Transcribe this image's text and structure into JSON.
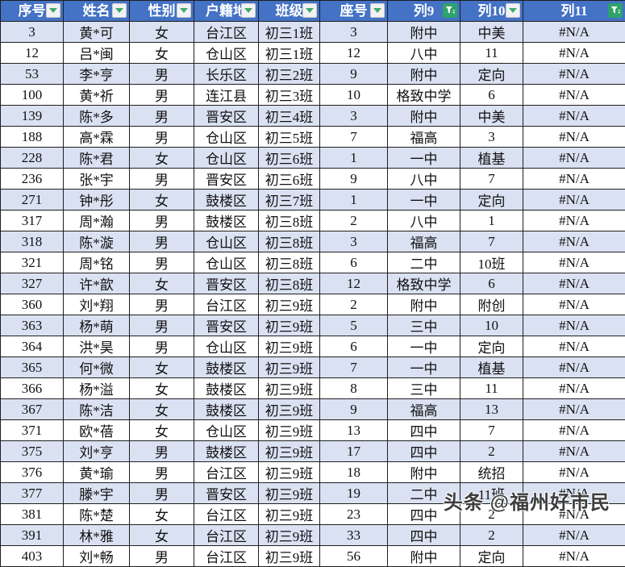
{
  "colors": {
    "header_bg": "#4472C4",
    "header_text": "#FFFFFF",
    "row_alt_bg": "#D9E1F2",
    "row_bg": "#FFFFFF",
    "grid_border": "#1F1F1F",
    "filter_green": "#2EA36B",
    "button_bg": "#F2F2F2"
  },
  "table": {
    "columns": [
      {
        "label": "序号",
        "filter": "dropdown"
      },
      {
        "label": "姓名",
        "filter": "dropdown"
      },
      {
        "label": "性别",
        "filter": "dropdown"
      },
      {
        "label": "户籍地",
        "filter": "dropdown"
      },
      {
        "label": "班级",
        "filter": "dropdown"
      },
      {
        "label": "座号",
        "filter": "dropdown"
      },
      {
        "label": "列9",
        "filter": "funnel"
      },
      {
        "label": "列10",
        "filter": "dropdown"
      },
      {
        "label": "列11",
        "filter": "funnel"
      }
    ],
    "rows": [
      [
        "3",
        "黄*可",
        "女",
        "台江区",
        "初三1班",
        "3",
        "附中",
        "中美",
        "#N/A"
      ],
      [
        "12",
        "吕*闽",
        "女",
        "仓山区",
        "初三1班",
        "12",
        "八中",
        "11",
        "#N/A"
      ],
      [
        "53",
        "李*亨",
        "男",
        "长乐区",
        "初三2班",
        "9",
        "附中",
        "定向",
        "#N/A"
      ],
      [
        "100",
        "黄*祈",
        "男",
        "连江县",
        "初三3班",
        "10",
        "格致中学",
        "6",
        "#N/A"
      ],
      [
        "139",
        "陈*多",
        "男",
        "晋安区",
        "初三4班",
        "3",
        "附中",
        "中美",
        "#N/A"
      ],
      [
        "188",
        "高*霖",
        "男",
        "仓山区",
        "初三5班",
        "7",
        "福高",
        "3",
        "#N/A"
      ],
      [
        "228",
        "陈*君",
        "女",
        "仓山区",
        "初三6班",
        "1",
        "一中",
        "植基",
        "#N/A"
      ],
      [
        "236",
        "张*宇",
        "男",
        "晋安区",
        "初三6班",
        "9",
        "八中",
        "7",
        "#N/A"
      ],
      [
        "271",
        "钟*彤",
        "女",
        "鼓楼区",
        "初三7班",
        "1",
        "一中",
        "定向",
        "#N/A"
      ],
      [
        "317",
        "周*瀚",
        "男",
        "鼓楼区",
        "初三8班",
        "2",
        "八中",
        "1",
        "#N/A"
      ],
      [
        "318",
        "陈*漩",
        "男",
        "仓山区",
        "初三8班",
        "3",
        "福高",
        "7",
        "#N/A"
      ],
      [
        "321",
        "周*铭",
        "男",
        "仓山区",
        "初三8班",
        "6",
        "二中",
        "10班",
        "#N/A"
      ],
      [
        "327",
        "许*歆",
        "女",
        "晋安区",
        "初三8班",
        "12",
        "格致中学",
        "6",
        "#N/A"
      ],
      [
        "360",
        "刘*翔",
        "男",
        "台江区",
        "初三9班",
        "2",
        "附中",
        "附创",
        "#N/A"
      ],
      [
        "363",
        "杨*萌",
        "男",
        "晋安区",
        "初三9班",
        "5",
        "三中",
        "10",
        "#N/A"
      ],
      [
        "364",
        "洪*昊",
        "男",
        "仓山区",
        "初三9班",
        "6",
        "一中",
        "定向",
        "#N/A"
      ],
      [
        "365",
        "何*微",
        "女",
        "鼓楼区",
        "初三9班",
        "7",
        "一中",
        "植基",
        "#N/A"
      ],
      [
        "366",
        "杨*溢",
        "女",
        "鼓楼区",
        "初三9班",
        "8",
        "三中",
        "11",
        "#N/A"
      ],
      [
        "367",
        "陈*洁",
        "女",
        "鼓楼区",
        "初三9班",
        "9",
        "福高",
        "13",
        "#N/A"
      ],
      [
        "371",
        "欧*蓓",
        "女",
        "仓山区",
        "初三9班",
        "13",
        "四中",
        "7",
        "#N/A"
      ],
      [
        "375",
        "刘*亨",
        "男",
        "鼓楼区",
        "初三9班",
        "17",
        "四中",
        "2",
        "#N/A"
      ],
      [
        "376",
        "黄*瑜",
        "男",
        "台江区",
        "初三9班",
        "18",
        "附中",
        "统招",
        "#N/A"
      ],
      [
        "377",
        "滕*宇",
        "男",
        "晋安区",
        "初三9班",
        "19",
        "二中",
        "11班",
        "#N/A"
      ],
      [
        "381",
        "陈*楚",
        "女",
        "台江区",
        "初三9班",
        "23",
        "四中",
        "2",
        "#N/A"
      ],
      [
        "391",
        "林*雅",
        "女",
        "台江区",
        "初三9班",
        "33",
        "四中",
        "2",
        "#N/A"
      ],
      [
        "403",
        "刘*畅",
        "男",
        "台江区",
        "初三9班",
        "56",
        "附中",
        "定向",
        "#N/A"
      ]
    ]
  },
  "watermark": {
    "text": "头条 @福州好市民"
  }
}
